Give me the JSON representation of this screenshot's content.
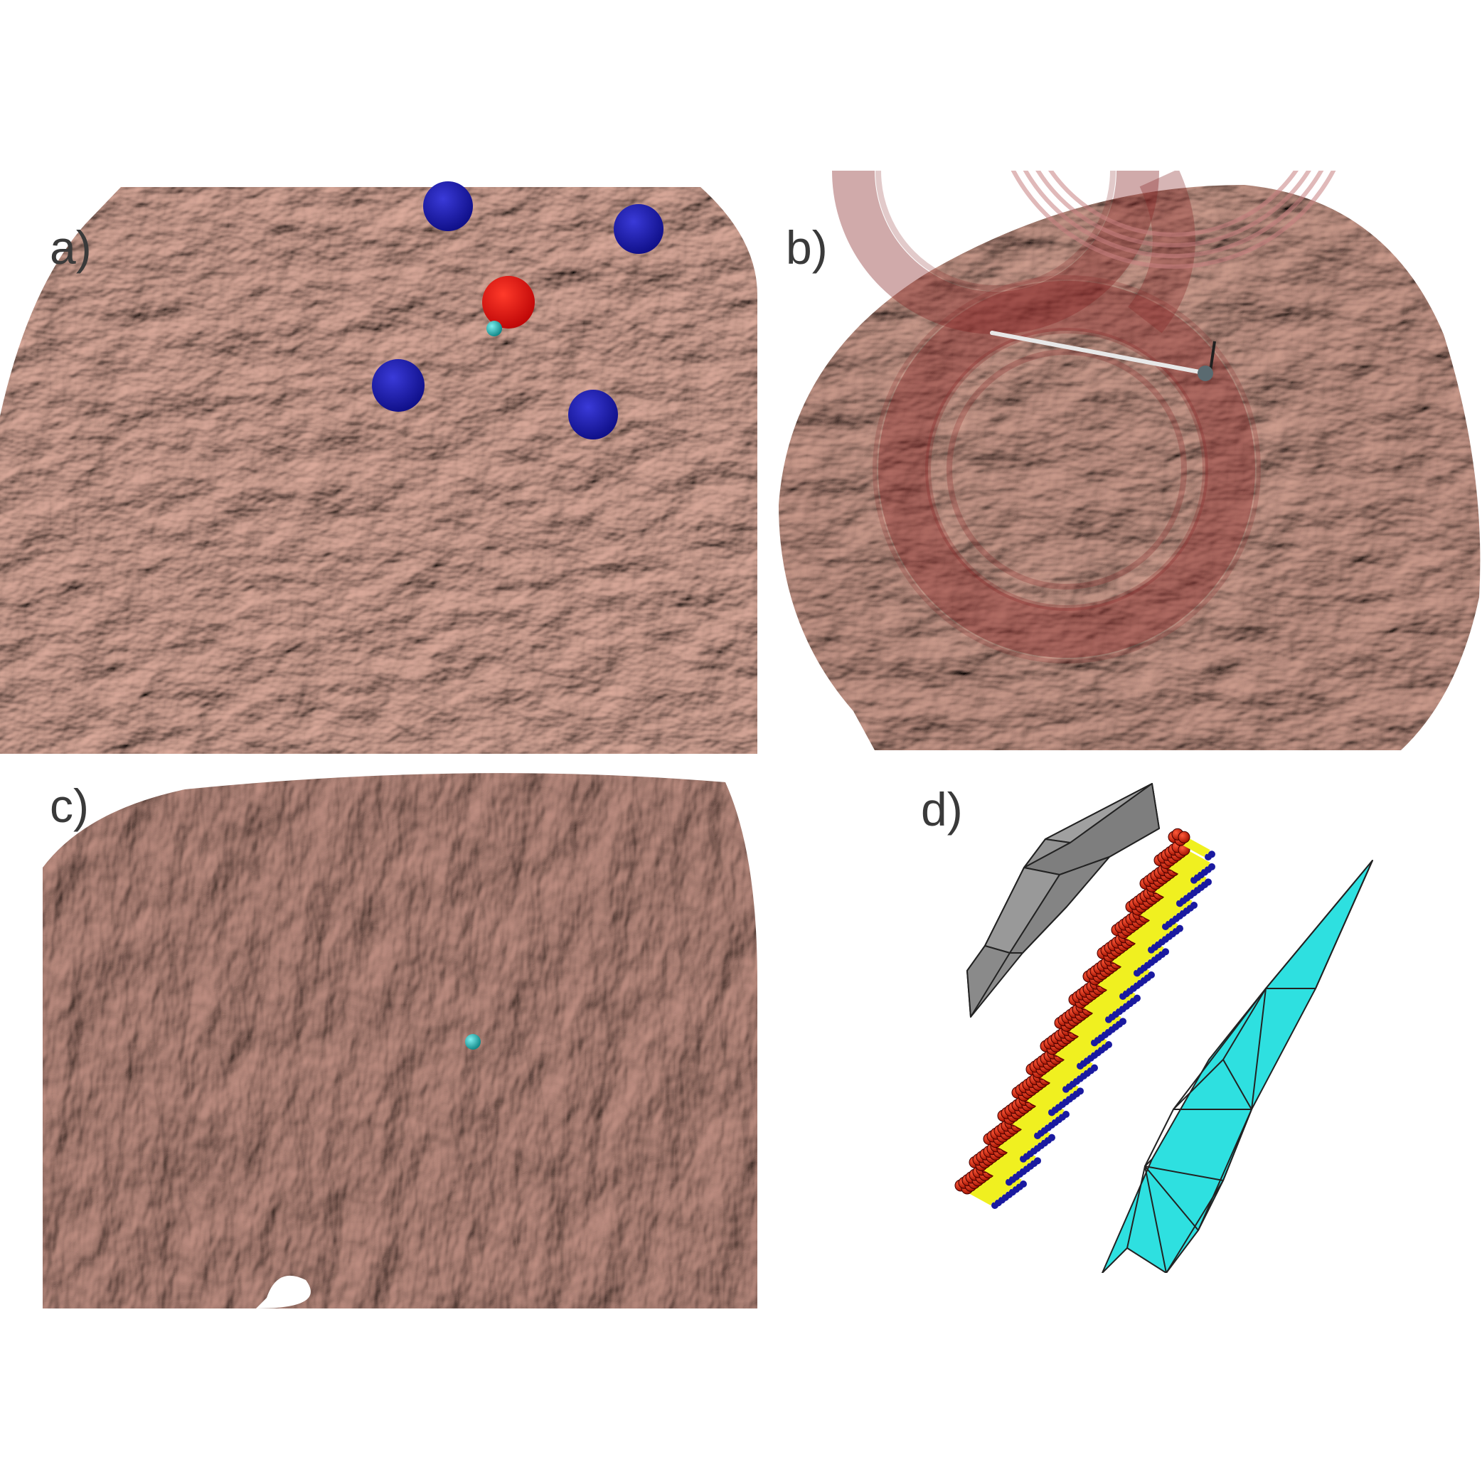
{
  "figure": {
    "panels": [
      {
        "id": "a",
        "label": "a)"
      },
      {
        "id": "b",
        "label": "b)"
      },
      {
        "id": "c",
        "label": "c)"
      },
      {
        "id": "d",
        "label": "d)"
      }
    ]
  },
  "colors": {
    "brain_base": "#b78d80",
    "brain_shadow": "#5a4038",
    "brain_highlight": "#f2d4c9",
    "electrode_blue": "#1b1bb0",
    "electrode_red": "#e01414",
    "dipole_cyan": "#22b5b5",
    "coil_red": "#8a2a2a",
    "mesh_gray": "#8a8a8a",
    "mesh_cyan": "#29e0e0",
    "source_red": "#cc1a00",
    "source_yellow": "#f0f020",
    "source_blue": "#1a1aa0"
  }
}
